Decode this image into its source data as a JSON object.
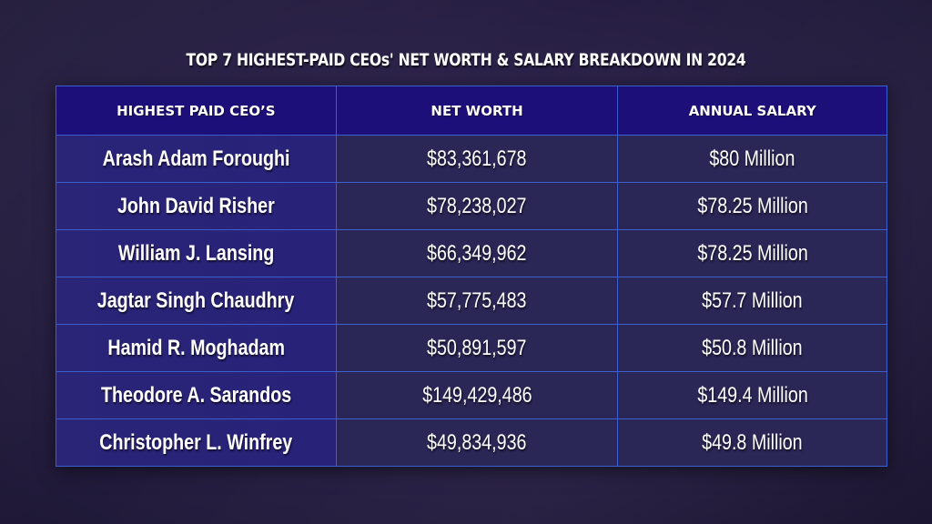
{
  "title": "TOP 7 HIGHEST-PAID CEOs' NET WORTH & SALARY BREAKDOWN IN 2024",
  "headers": [
    "HIGHEST PAID CEO’S",
    "NET WORTH",
    "ANNUAL SALARY"
  ],
  "rows": [
    {
      "name": "Arash Adam Foroughi",
      "net_worth": "$83,361,678",
      "salary": "$80 Million"
    },
    {
      "name": "John David Risher",
      "net_worth": "$78,238,027",
      "salary": "$78.25 Million"
    },
    {
      "name": "William J. Lansing",
      "net_worth": "$66,349,962",
      "salary": "$78.25 Million"
    },
    {
      "name": "Jagtar Singh Chaudhry",
      "net_worth": "$57,775,483",
      "salary": "$57.7 Million"
    },
    {
      "name": "Hamid R. Moghadam",
      "net_worth": "$50,891,597",
      "salary": "$50.8  Million"
    },
    {
      "name": "Theodore A. Sarandos",
      "net_worth": "$149,429,486",
      "salary": "$149.4 Million"
    },
    {
      "name": "Christopher L. Winfrey",
      "net_worth": "$49,834,936",
      "salary": "$49.8 Million"
    }
  ],
  "chart_data": {
    "type": "table",
    "title": "TOP 7 HIGHEST-PAID CEOs' NET WORTH & SALARY BREAKDOWN IN 2024",
    "columns": [
      "HIGHEST PAID CEO’S",
      "NET WORTH",
      "ANNUAL SALARY"
    ],
    "rows": [
      [
        "Arash Adam Foroughi",
        "$83,361,678",
        "$80 Million"
      ],
      [
        "John David Risher",
        "$78,238,027",
        "$78.25 Million"
      ],
      [
        "William J. Lansing",
        "$66,349,962",
        "$78.25 Million"
      ],
      [
        "Jagtar Singh Chaudhry",
        "$57,775,483",
        "$57.7 Million"
      ],
      [
        "Hamid R. Moghadam",
        "$50,891,597",
        "$50.8 Million"
      ],
      [
        "Theodore A. Sarandos",
        "$149,429,486",
        "$149.4 Million"
      ],
      [
        "Christopher L. Winfrey",
        "$49,834,936",
        "$49.8 Million"
      ]
    ]
  }
}
